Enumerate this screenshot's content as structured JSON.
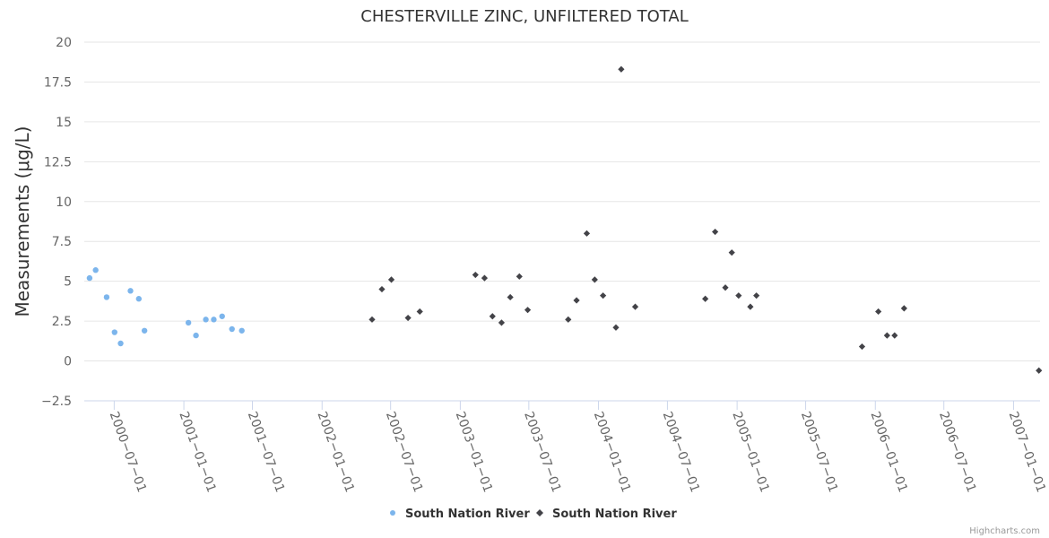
{
  "chart_data": {
    "type": "scatter",
    "title": "CHESTERVILLE ZINC, UNFILTERED TOTAL",
    "xlabel": "",
    "ylabel": "Measurements (μg/L)",
    "ylim": [
      -2.5,
      20
    ],
    "yticks": [
      -2.5,
      0,
      2.5,
      5,
      7.5,
      10,
      12.5,
      15,
      17.5,
      20
    ],
    "ytick_labels": [
      "−2.5",
      "0",
      "2.5",
      "5",
      "7.5",
      "10",
      "12.5",
      "15",
      "17.5",
      "20"
    ],
    "xlim": [
      "2000-04-13",
      "2007-03-12"
    ],
    "xticks": [
      "2000-07-01",
      "2001-01-01",
      "2001-07-01",
      "2002-01-01",
      "2002-07-01",
      "2003-01-01",
      "2003-07-01",
      "2004-01-01",
      "2004-07-01",
      "2005-01-01",
      "2005-07-01",
      "2006-01-01",
      "2006-07-01",
      "2007-01-01"
    ],
    "xtick_labels": [
      "2000−07−01",
      "2001−01−01",
      "2001−07−01",
      "2002−01−01",
      "2002−07−01",
      "2003−01−01",
      "2003−07−01",
      "2004−01−01",
      "2004−07−01",
      "2005−01−01",
      "2005−07−01",
      "2006−01−01",
      "2006−07−01",
      "2007−01−01"
    ],
    "grid": true,
    "legend_position": "bottom-center",
    "credits": "Highcharts.com",
    "series": [
      {
        "name": "South Nation River",
        "marker": "circle",
        "color": "#7cb5ec",
        "points": [
          [
            "2000-04-27",
            5.2
          ],
          [
            "2000-05-13",
            5.7
          ],
          [
            "2000-06-11",
            4.0
          ],
          [
            "2000-07-02",
            1.8
          ],
          [
            "2000-07-18",
            1.1
          ],
          [
            "2000-08-13",
            4.4
          ],
          [
            "2000-09-04",
            3.9
          ],
          [
            "2000-09-19",
            1.9
          ],
          [
            "2001-01-13",
            2.4
          ],
          [
            "2001-02-02",
            1.6
          ],
          [
            "2001-02-28",
            2.6
          ],
          [
            "2001-03-21",
            2.6
          ],
          [
            "2001-04-12",
            2.8
          ],
          [
            "2001-05-08",
            2.0
          ],
          [
            "2001-06-03",
            1.9
          ]
        ]
      },
      {
        "name": "South Nation River",
        "marker": "diamond",
        "color": "#434348",
        "points": [
          [
            "2002-05-13",
            2.6
          ],
          [
            "2002-06-08",
            4.5
          ],
          [
            "2002-07-03",
            5.1
          ],
          [
            "2002-08-16",
            2.7
          ],
          [
            "2002-09-16",
            3.1
          ],
          [
            "2003-02-10",
            5.4
          ],
          [
            "2003-03-06",
            5.2
          ],
          [
            "2003-03-27",
            2.8
          ],
          [
            "2003-04-20",
            2.4
          ],
          [
            "2003-05-13",
            4.0
          ],
          [
            "2003-06-06",
            5.3
          ],
          [
            "2003-06-28",
            3.2
          ],
          [
            "2003-10-13",
            2.6
          ],
          [
            "2003-11-04",
            3.8
          ],
          [
            "2003-12-01",
            8.0
          ],
          [
            "2003-12-22",
            5.1
          ],
          [
            "2004-01-13",
            4.1
          ],
          [
            "2004-02-16",
            2.1
          ],
          [
            "2004-03-01",
            18.3
          ],
          [
            "2004-04-07",
            3.4
          ],
          [
            "2004-10-09",
            3.9
          ],
          [
            "2004-11-04",
            8.1
          ],
          [
            "2004-12-01",
            4.6
          ],
          [
            "2004-12-18",
            6.8
          ],
          [
            "2005-01-05",
            4.1
          ],
          [
            "2005-02-05",
            3.4
          ],
          [
            "2005-02-21",
            4.1
          ],
          [
            "2005-11-27",
            0.9
          ],
          [
            "2006-01-09",
            3.1
          ],
          [
            "2006-02-01",
            1.6
          ],
          [
            "2006-02-21",
            1.6
          ],
          [
            "2006-03-18",
            3.3
          ],
          [
            "2007-03-09",
            -0.6
          ]
        ]
      }
    ]
  }
}
